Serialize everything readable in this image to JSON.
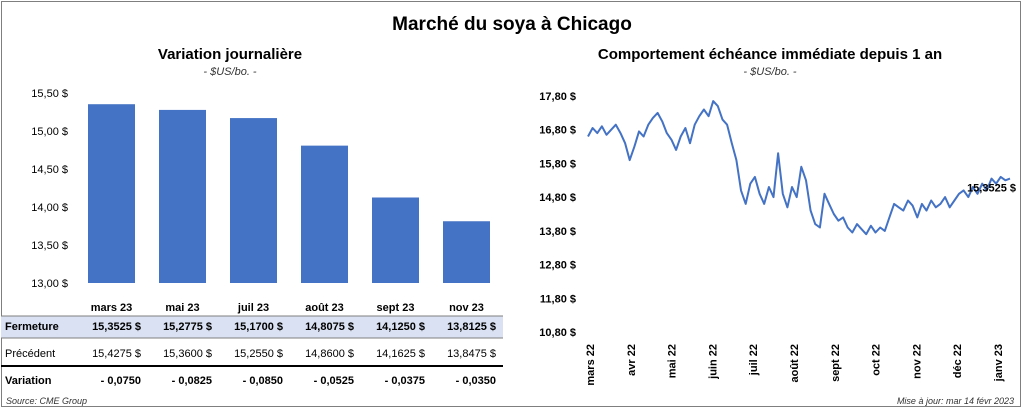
{
  "main_title": "Marché du soya à Chicago",
  "left_panel": {
    "title": "Variation journalière",
    "subtitle": "- $US/bo. -"
  },
  "right_panel": {
    "title": "Comportement échéance immédiate depuis 1 an",
    "subtitle": "- $US/bo. -",
    "last_value_label": "15,3525 $"
  },
  "table": {
    "rows": [
      {
        "label": "Fermeture",
        "values": [
          "15,3525 $",
          "15,2775 $",
          "15,1700 $",
          "14,8075 $",
          "14,1250 $",
          "13,8125 $"
        ]
      },
      {
        "label": "Précédent",
        "values": [
          "15,4275 $",
          "15,3600 $",
          "15,2550 $",
          "14,8600 $",
          "14,1625 $",
          "13,8475 $"
        ]
      },
      {
        "label": "Variation",
        "values": [
          "- 0,0750",
          "- 0,0825",
          "- 0,0850",
          "- 0,0525",
          "- 0,0375",
          "- 0,0350"
        ]
      }
    ]
  },
  "footer": {
    "source": "Source: CME Group",
    "updated": "Mise à jour: mar 14 févr 2023"
  },
  "colors": {
    "bar": "#4472c4",
    "line": "#4472c4",
    "highlight_row": "#d9e1f2",
    "negative": "#ff0000"
  },
  "chart_data": [
    {
      "type": "bar",
      "title": "Variation journalière",
      "subtitle": "- $US/bo. -",
      "categories": [
        "mars 23",
        "mai 23",
        "juil 23",
        "août 23",
        "sept 23",
        "nov 23"
      ],
      "values": [
        15.3525,
        15.2775,
        15.17,
        14.8075,
        14.125,
        13.8125
      ],
      "ylim": [
        13.0,
        15.5
      ],
      "yticks": [
        13.0,
        13.5,
        14.0,
        14.5,
        15.0,
        15.5
      ],
      "ytick_labels": [
        "13,00 $",
        "13,50 $",
        "14,00 $",
        "14,50 $",
        "15,00 $",
        "15,50 $"
      ],
      "grid": false
    },
    {
      "type": "line",
      "title": "Comportement échéance immédiate depuis 1 an",
      "subtitle": "- $US/bo. -",
      "ylim": [
        10.8,
        17.8
      ],
      "yticks": [
        10.8,
        11.8,
        12.8,
        13.8,
        14.8,
        15.8,
        16.8,
        17.8
      ],
      "ytick_labels": [
        "10,80 $",
        "11,80 $",
        "12,80 $",
        "13,80 $",
        "14,80 $",
        "15,80 $",
        "16,80 $",
        "17,80 $"
      ],
      "xtick_labels": [
        "mars 22",
        "avr 22",
        "mai 22",
        "juin 22",
        "juil 22",
        "août 22",
        "sept 22",
        "oct 22",
        "nov 22",
        "déc 22",
        "janv 23"
      ],
      "last_value": 15.3525,
      "last_value_label": "15,3525 $",
      "grid": false,
      "series": [
        {
          "values": [
            16.6,
            16.85,
            16.7,
            16.9,
            16.65,
            16.8,
            16.95,
            16.7,
            16.4,
            15.9,
            16.3,
            16.75,
            16.6,
            16.95,
            17.15,
            17.3,
            17.05,
            16.7,
            16.5,
            16.2,
            16.6,
            16.85,
            16.4,
            16.95,
            17.2,
            17.4,
            17.2,
            17.65,
            17.5,
            17.1,
            16.95,
            16.4,
            15.9,
            15.0,
            14.6,
            15.2,
            15.4,
            14.9,
            14.6,
            15.1,
            14.8,
            16.1,
            14.9,
            14.5,
            15.1,
            14.8,
            15.7,
            15.3,
            14.4,
            14.0,
            13.9,
            14.9,
            14.6,
            14.3,
            14.1,
            14.2,
            13.9,
            13.75,
            14.0,
            13.85,
            13.7,
            13.95,
            13.75,
            13.9,
            13.8,
            14.2,
            14.6,
            14.5,
            14.4,
            14.7,
            14.55,
            14.2,
            14.6,
            14.4,
            14.7,
            14.5,
            14.6,
            14.8,
            14.5,
            14.7,
            14.9,
            15.0,
            14.8,
            15.1,
            14.9,
            15.2,
            15.0,
            15.35,
            15.2,
            15.4,
            15.3,
            15.35
          ]
        }
      ]
    }
  ]
}
